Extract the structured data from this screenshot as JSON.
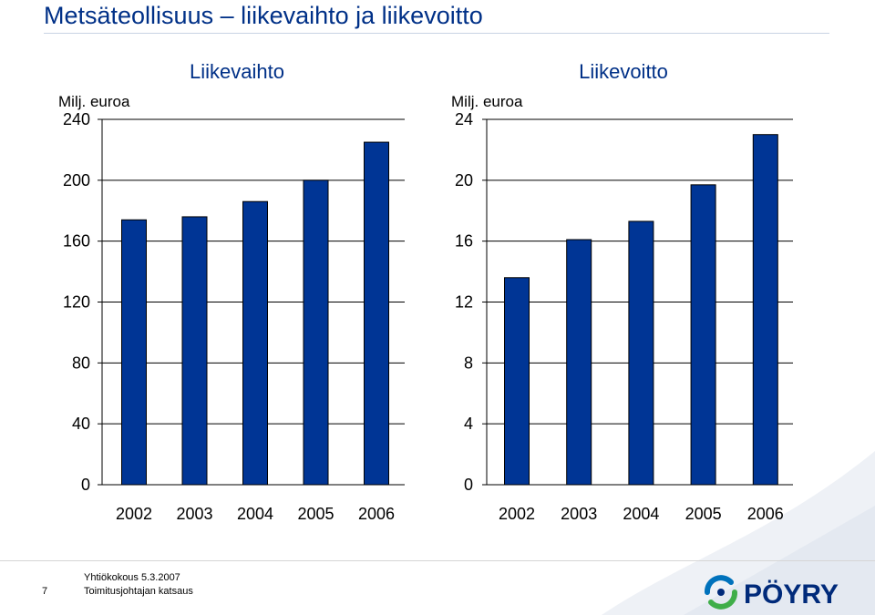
{
  "page": {
    "title": "Metsäteollisuus – liikevaihto ja liikevoitto",
    "footer_line1": "Yhtiökokous 5.3.2007",
    "footer_line2": "Toimitusjohtajan katsaus",
    "page_number": "7",
    "logo_text": "PÖYRY"
  },
  "colors": {
    "bar": "#003595",
    "bar_border": "#000000",
    "title": "#003087",
    "logo_navy": "#002a7a",
    "logo_green": "#3fae49",
    "logo_blue": "#0072bc"
  },
  "chart_data": [
    {
      "type": "bar",
      "title": "Liikevaihto",
      "ylabel": "Milj. euroa",
      "categories": [
        "2002",
        "2003",
        "2004",
        "2005",
        "2006"
      ],
      "values": [
        174,
        176,
        186,
        200,
        225
      ],
      "ylim": [
        0,
        240
      ],
      "yticks": [
        "0",
        "40",
        "80",
        "120",
        "160",
        "200",
        "240"
      ],
      "grid": true,
      "legend": "none"
    },
    {
      "type": "bar",
      "title": "Liikevoitto",
      "ylabel": "Milj. euroa",
      "categories": [
        "2002",
        "2003",
        "2004",
        "2005",
        "2006"
      ],
      "values": [
        13.6,
        16.1,
        17.3,
        19.7,
        23
      ],
      "ylim": [
        0,
        24
      ],
      "yticks": [
        "0",
        "4",
        "8",
        "12",
        "16",
        "20",
        "24"
      ],
      "grid": true,
      "legend": "none"
    }
  ]
}
